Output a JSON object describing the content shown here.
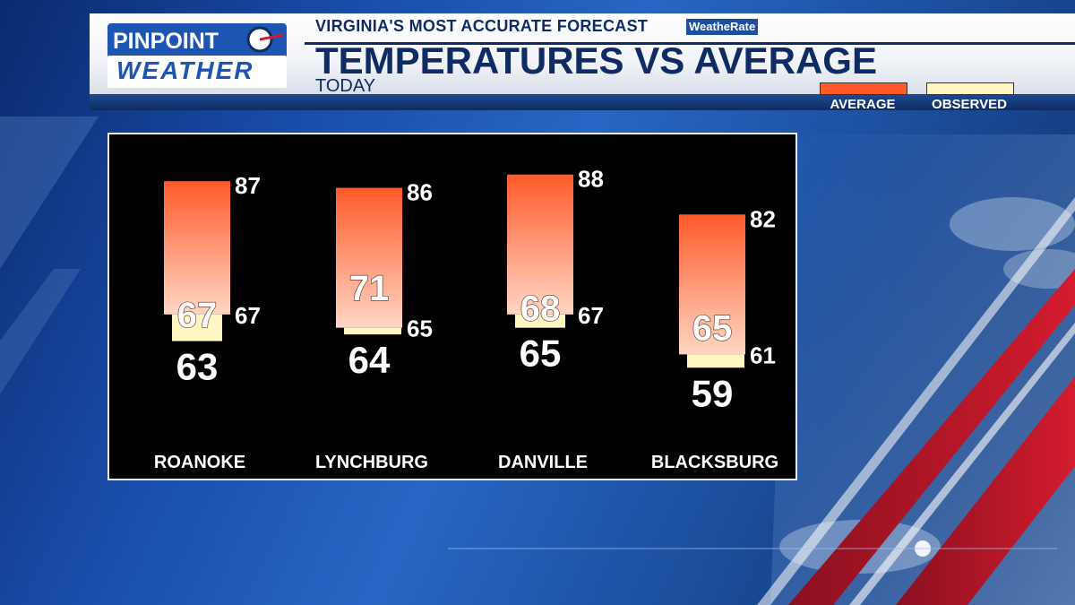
{
  "header": {
    "logo_line1": "PINPOINT",
    "logo_line2": "WEATHER",
    "tagline": "VIRGINIA'S MOST ACCURATE FORECAST",
    "badge": "WeatheRate",
    "title": "TEMPERATURES VS AVERAGE",
    "subtitle": "TODAY"
  },
  "legend": {
    "average_label": "AVERAGE",
    "observed_label": "OBSERVED",
    "average_color": "#ff5a2a",
    "observed_color": "#fff6c2"
  },
  "chart_data": {
    "type": "bar",
    "categories": [
      "ROANOKE",
      "LYNCHBURG",
      "DANVILLE",
      "BLACKSBURG"
    ],
    "series": [
      {
        "name": "AVERAGE",
        "high": [
          87,
          86,
          88,
          82
        ],
        "low": [
          67,
          65,
          67,
          61
        ],
        "center": [
          67,
          71,
          68,
          65
        ]
      },
      {
        "name": "OBSERVED",
        "high": [
          67,
          65,
          67,
          61
        ],
        "low": [
          63,
          64,
          65,
          59
        ]
      }
    ],
    "ylim": [
      55,
      92
    ],
    "grid": false,
    "legend_position": "top-right"
  }
}
